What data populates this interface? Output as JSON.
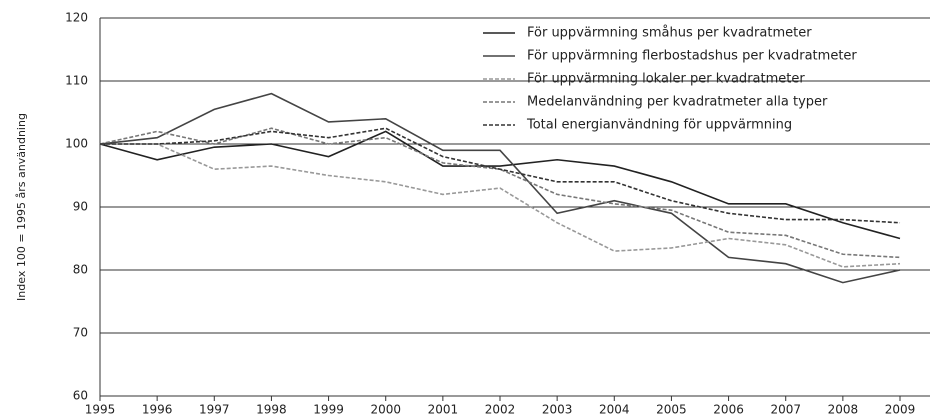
{
  "chart_data": {
    "type": "line",
    "y_label": "Index 100 = 1995 års användning",
    "categories": [
      "1995",
      "1996",
      "1997",
      "1998",
      "1999",
      "2000",
      "2001",
      "2002",
      "2003",
      "2004",
      "2005",
      "2006",
      "2007",
      "2008",
      "2009"
    ],
    "series": [
      {
        "name": "För uppvärmning småhus per kvadratmeter",
        "color": "#222222",
        "values": [
          100,
          97.5,
          99.5,
          100,
          98,
          102,
          96.5,
          96.5,
          97.5,
          96.5,
          94,
          90.5,
          90.5,
          87.5,
          85
        ]
      },
      {
        "name": "För uppvärmning flerbostadshus per kvadratmeter",
        "color": "#444444",
        "values": [
          100,
          101,
          105.5,
          108,
          103.5,
          104,
          99,
          99,
          89,
          91,
          89,
          82,
          81,
          78,
          80
        ]
      },
      {
        "name": "För uppvärmning lokaler per kvadratmeter",
        "color": "#999999",
        "values": [
          100,
          100,
          96,
          96.5,
          95,
          94,
          92,
          93,
          87.5,
          83,
          83.5,
          85,
          84,
          80.5,
          81
        ]
      },
      {
        "name": "Medelanvändning per kvadratmeter alla typer",
        "color": "#777777",
        "values": [
          100,
          102,
          100,
          102.5,
          100,
          101,
          97,
          96,
          92,
          90.5,
          89.5,
          86,
          85.5,
          82.5,
          82
        ]
      },
      {
        "name": "Total energianvändning för uppvärmning",
        "color": "#333333",
        "values": [
          100,
          100,
          100.5,
          102,
          101,
          102.5,
          98,
          96,
          94,
          94,
          91,
          89,
          88,
          88,
          87.5
        ]
      }
    ],
    "ylim": [
      60,
      120
    ],
    "yticks": [
      60,
      70,
      80,
      90,
      100,
      110,
      120
    ],
    "grid": true,
    "legend": "upper right"
  }
}
